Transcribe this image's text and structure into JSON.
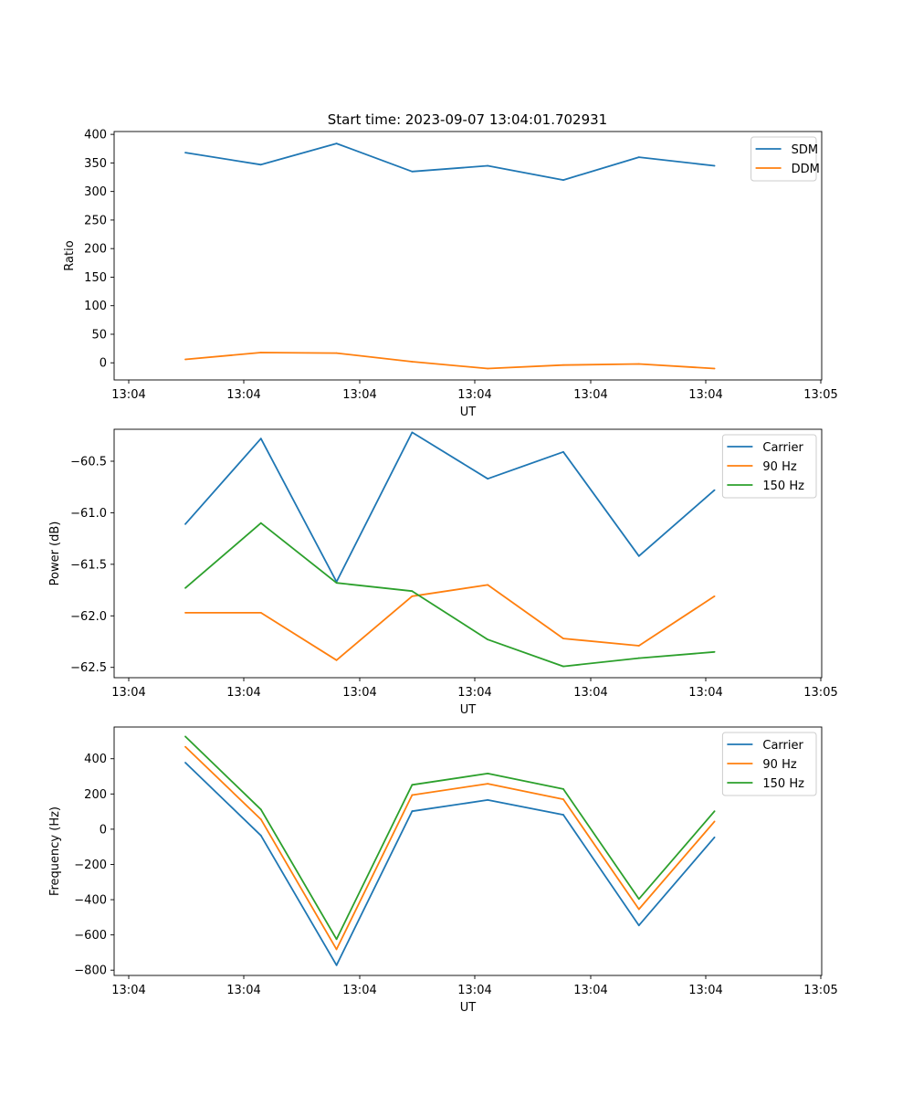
{
  "figure_title": "Start time: 2023-09-07 13:04:01.702931",
  "chart_data": [
    {
      "type": "line",
      "title": "Start time: 2023-09-07 13:04:01.702931",
      "xlabel": "UT",
      "ylabel": "Ratio",
      "xtick_labels": [
        "13:04",
        "13:04",
        "13:04",
        "13:04",
        "13:04",
        "13:04",
        "13:05"
      ],
      "ylim": [
        -30,
        405
      ],
      "yticks": [
        0,
        50,
        100,
        150,
        200,
        250,
        300,
        350,
        400
      ],
      "ytick_labels": [
        "0",
        "50",
        "100",
        "150",
        "200",
        "250",
        "300",
        "350",
        "400"
      ],
      "x": [
        1,
        2,
        3,
        4,
        5,
        6,
        7,
        8
      ],
      "legend_position": "top-right",
      "series": [
        {
          "name": "SDM",
          "color": "#1f77b4",
          "values": [
            368,
            347,
            384,
            335,
            345,
            320,
            360,
            345
          ]
        },
        {
          "name": "DDM",
          "color": "#ff7f0e",
          "values": [
            6,
            18,
            17,
            2,
            -10,
            -4,
            -2,
            -10
          ]
        }
      ]
    },
    {
      "type": "line",
      "title": "",
      "xlabel": "UT",
      "ylabel": "Power (dB)",
      "xtick_labels": [
        "13:04",
        "13:04",
        "13:04",
        "13:04",
        "13:04",
        "13:04",
        "13:05"
      ],
      "ylim": [
        -62.6,
        -60.19
      ],
      "yticks": [
        -62.5,
        -62.0,
        -61.5,
        -61.0,
        -60.5
      ],
      "ytick_labels": [
        "−62.5",
        "−62.0",
        "−61.5",
        "−61.0",
        "−60.5"
      ],
      "x": [
        1,
        2,
        3,
        4,
        5,
        6,
        7,
        8
      ],
      "legend_position": "top-right",
      "series": [
        {
          "name": "Carrier",
          "color": "#1f77b4",
          "values": [
            -61.11,
            -60.28,
            -61.67,
            -60.22,
            -60.67,
            -60.41,
            -61.42,
            -60.78
          ]
        },
        {
          "name": "90 Hz",
          "color": "#ff7f0e",
          "values": [
            -61.97,
            -61.97,
            -62.43,
            -61.81,
            -61.7,
            -62.22,
            -62.29,
            -61.81
          ]
        },
        {
          "name": "150 Hz",
          "color": "#2ca02c",
          "values": [
            -61.73,
            -61.1,
            -61.68,
            -61.76,
            -62.23,
            -62.49,
            -62.41,
            -62.35
          ]
        }
      ]
    },
    {
      "type": "line",
      "title": "",
      "xlabel": "UT",
      "ylabel": "Frequency (Hz)",
      "xtick_labels": [
        "13:04",
        "13:04",
        "13:04",
        "13:04",
        "13:04",
        "13:04",
        "13:05"
      ],
      "ylim": [
        -830,
        580
      ],
      "yticks": [
        -800,
        -600,
        -400,
        -200,
        0,
        200,
        400
      ],
      "ytick_labels": [
        "−800",
        "−600",
        "−400",
        "−200",
        "0",
        "200",
        "400"
      ],
      "x": [
        1,
        2,
        3,
        4,
        5,
        6,
        7,
        8
      ],
      "legend_position": "top-right",
      "series": [
        {
          "name": "Carrier",
          "color": "#1f77b4",
          "values": [
            378,
            -36,
            -772,
            102,
            166,
            82,
            -546,
            -46
          ]
        },
        {
          "name": "90 Hz",
          "color": "#ff7f0e",
          "values": [
            468,
            56,
            -682,
            194,
            258,
            170,
            -454,
            44
          ]
        },
        {
          "name": "150 Hz",
          "color": "#2ca02c",
          "values": [
            526,
            112,
            -624,
            252,
            316,
            228,
            -396,
            102
          ]
        }
      ]
    }
  ]
}
